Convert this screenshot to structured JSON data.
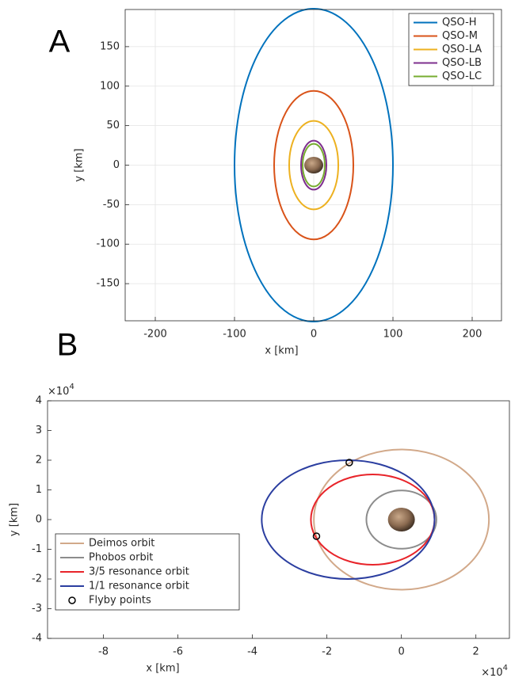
{
  "chart_data": [
    {
      "type": "orbit",
      "panel_label": "A",
      "x_label": "x [km]",
      "y_label": "y [km]",
      "xlim": [
        -238,
        237
      ],
      "ylim": [
        -197,
        197
      ],
      "xticks": [
        -200,
        -100,
        0,
        100,
        200
      ],
      "yticks": [
        -150,
        -100,
        -50,
        0,
        50,
        100,
        150
      ],
      "grid": true,
      "legend": "upper right",
      "series": [
        {
          "name": "QSO-H",
          "color": "#0072bd",
          "center": [
            0,
            0
          ],
          "x_radius": 100,
          "y_radius": 198
        },
        {
          "name": "QSO-M",
          "color": "#d95319",
          "center": [
            0,
            0
          ],
          "x_radius": 50,
          "y_radius": 94
        },
        {
          "name": "QSO-LA",
          "color": "#edb120",
          "center": [
            0,
            0
          ],
          "x_radius": 31,
          "y_radius": 56
        },
        {
          "name": "QSO-LB",
          "color": "#7e2f8e",
          "center": [
            0,
            0
          ],
          "x_radius": 16,
          "y_radius": 31
        },
        {
          "name": "QSO-LC",
          "color": "#77ac30",
          "center": [
            0,
            0
          ],
          "x_radius": 14,
          "y_radius": 27
        }
      ]
    },
    {
      "type": "orbit",
      "panel_label": "B",
      "x_label": "x [km]",
      "y_label": "y [km]",
      "x_multiplier": {
        "base": "×10",
        "exponent": "4"
      },
      "y_multiplier": {
        "base": "×10",
        "exponent": "4"
      },
      "xlim": [
        -9.5,
        2.9
      ],
      "ylim": [
        -4,
        4
      ],
      "xticks": [
        -8,
        -6,
        -4,
        -2,
        0,
        2
      ],
      "yticks": [
        -4,
        -3,
        -2,
        -1,
        0,
        1,
        2,
        3,
        4
      ],
      "grid": false,
      "legend": "lower left",
      "series": [
        {
          "name": "Deimos orbit",
          "color": "#d2a98a",
          "center": [
            0,
            0
          ],
          "x_radius": 2.35,
          "y_radius": 2.36
        },
        {
          "name": "Phobos orbit",
          "color": "#8c8c8c",
          "center": [
            0,
            0
          ],
          "x_radius": 0.94,
          "y_radius": 0.98
        },
        {
          "name": "3/5 resonance orbit",
          "color": "#e8242a",
          "center": [
            -0.77,
            0
          ],
          "x_radius": 1.66,
          "y_radius": 1.52
        },
        {
          "name": "1/1 resonance orbit",
          "color": "#2b3ea0",
          "center": [
            -1.43,
            0
          ],
          "x_radius": 2.32,
          "y_radius": 2.0
        },
        {
          "name": "Flyby points",
          "color": "#000000",
          "x": [
            -1.4,
            -2.28
          ],
          "y": [
            1.92,
            -0.56
          ]
        }
      ]
    }
  ]
}
